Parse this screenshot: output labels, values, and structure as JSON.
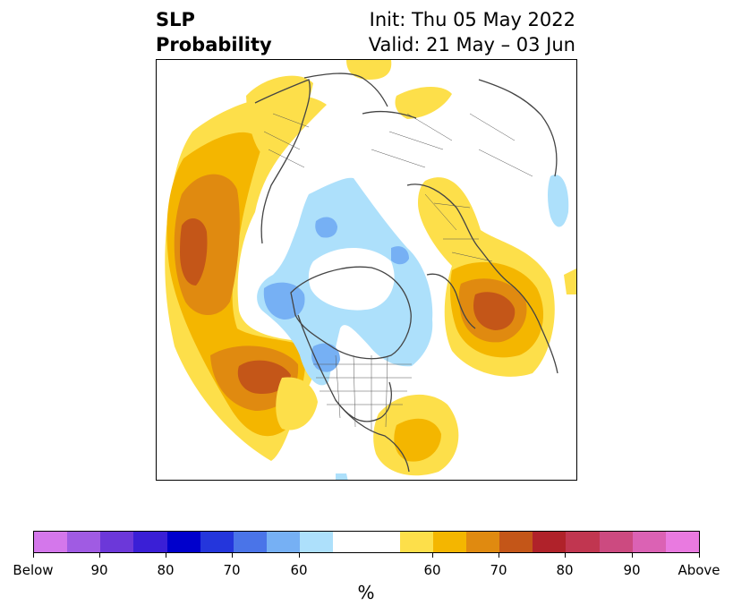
{
  "title": {
    "left_line1": "SLP",
    "left_line2": "Probability",
    "right_line1": "Init: Thu 05 May 2022",
    "right_line2": "Valid: 21 May – 03 Jun"
  },
  "colorbar": {
    "label": "%",
    "colors": [
      "#d477eb",
      "#a05be3",
      "#6c38d9",
      "#3a1fd6",
      "#0000cc",
      "#2436dc",
      "#4a74e8",
      "#76b0f4",
      "#ade0fb",
      "#ffffff",
      "#fddf4a",
      "#f4b600",
      "#e08a10",
      "#c45618",
      "#b0222a",
      "#c13650",
      "#cc4a80",
      "#db62b4",
      "#e97ae0"
    ],
    "tick_labels": [
      "Below",
      "90",
      "80",
      "70",
      "60",
      "60",
      "70",
      "80",
      "90",
      "Above"
    ]
  },
  "map": {
    "projection": "north-polar-stereographic",
    "regions_shown": [
      "North Pacific",
      "North America",
      "Arctic",
      "Europe",
      "North Atlantic",
      "Eurasia"
    ],
    "anomaly_colors": {
      "above_60": "#fddf4a",
      "above_70": "#f4b600",
      "above_80": "#e08a10",
      "above_90": "#c45618",
      "below_60": "#ade0fb",
      "below_70": "#76b0f4",
      "below_80": "#4a74e8"
    }
  }
}
